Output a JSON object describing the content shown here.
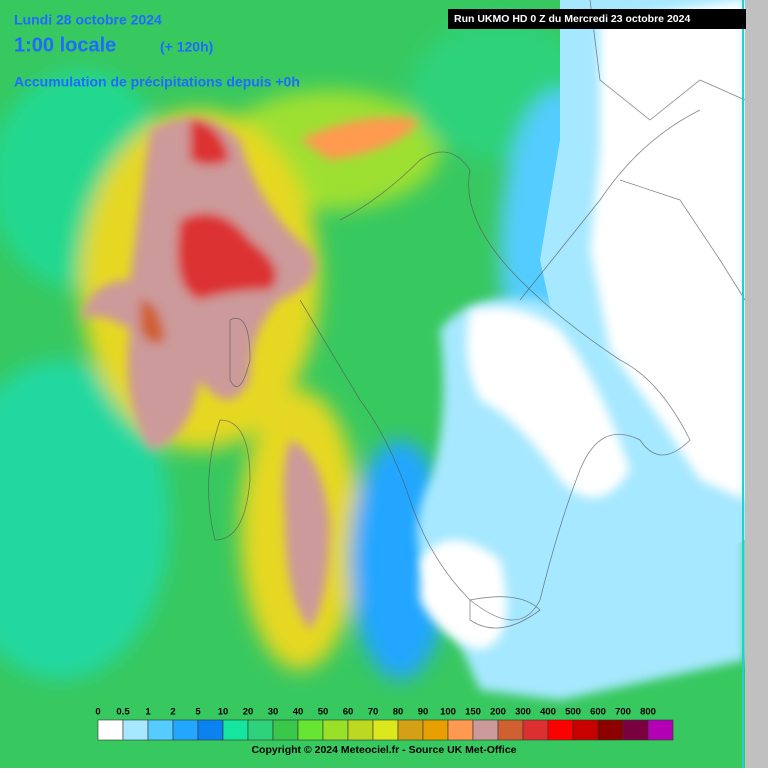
{
  "header": {
    "date": "Lundi 28 octobre 2024",
    "time": "1:00 locale",
    "lead": "(+ 120h)",
    "subtitle": "Accumulation de précipitations depuis +0h",
    "run": "Run UKMO HD 0 Z du Mercredi 23 octobre 2024"
  },
  "legend": {
    "items": [
      {
        "label": "0",
        "color": "#ffffff"
      },
      {
        "label": "0.5",
        "color": "#a6e8ff"
      },
      {
        "label": "1",
        "color": "#55ccff"
      },
      {
        "label": "2",
        "color": "#22a6ff"
      },
      {
        "label": "5",
        "color": "#0a82f0"
      },
      {
        "label": "10",
        "color": "#14e6a0"
      },
      {
        "label": "20",
        "color": "#2ed27a"
      },
      {
        "label": "30",
        "color": "#3ac84a"
      },
      {
        "label": "40",
        "color": "#66e632"
      },
      {
        "label": "50",
        "color": "#99e028"
      },
      {
        "label": "60",
        "color": "#bcd820"
      },
      {
        "label": "70",
        "color": "#dce81c"
      },
      {
        "label": "80",
        "color": "#d4a014"
      },
      {
        "label": "90",
        "color": "#e8a000"
      },
      {
        "label": "100",
        "color": "#ff9a50"
      },
      {
        "label": "150",
        "color": "#cc9a9a"
      },
      {
        "label": "200",
        "color": "#d06030"
      },
      {
        "label": "300",
        "color": "#dc3030"
      },
      {
        "label": "400",
        "color": "#ff0000"
      },
      {
        "label": "500",
        "color": "#c80000"
      },
      {
        "label": "600",
        "color": "#8c0000"
      },
      {
        "label": "700",
        "color": "#7a0040"
      },
      {
        "label": "800",
        "color": "#b400b4"
      }
    ]
  },
  "footer": {
    "copyright": "Copyright © 2024 Meteociel.fr - Source UK Met-Office"
  }
}
